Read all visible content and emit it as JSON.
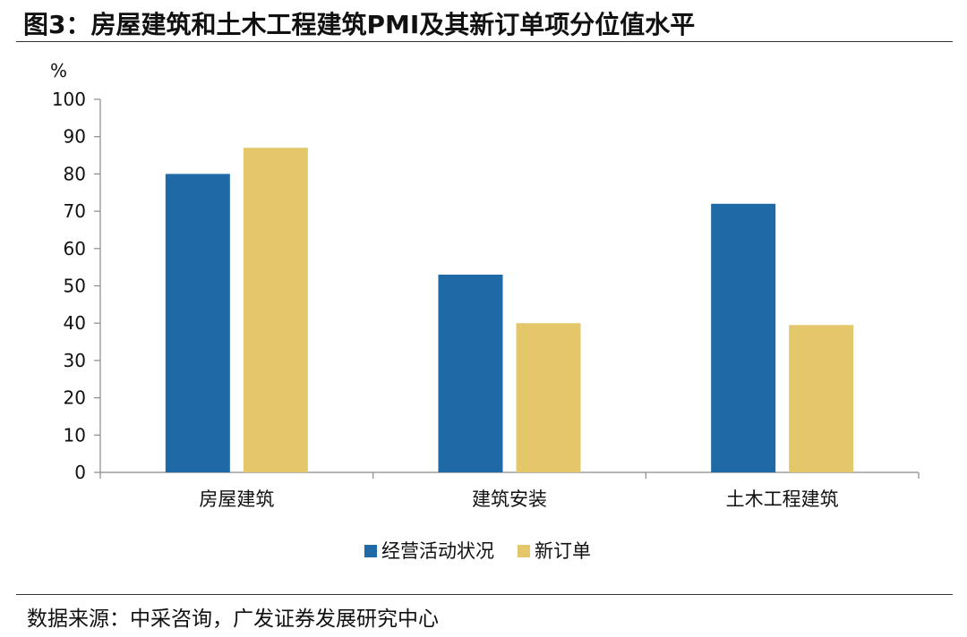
{
  "title": "图3：房屋建筑和土木工程建筑PMI及其新订单项分位值水平",
  "source": "数据来源：中采咨询，广发证券发展研究中心",
  "chart_data": {
    "type": "bar",
    "categories": [
      "房屋建筑",
      "建筑安装",
      "土木工程建筑"
    ],
    "series": [
      {
        "name": "经营活动状况",
        "values": [
          80,
          53,
          72
        ],
        "color": "#1F69A6"
      },
      {
        "name": "新订单",
        "values": [
          87,
          40,
          39.5
        ],
        "color": "#E5C76B"
      }
    ],
    "yunit": "%",
    "ylim": [
      0,
      100
    ],
    "yticks": [
      0,
      10,
      20,
      30,
      40,
      50,
      60,
      70,
      80,
      90,
      100
    ],
    "grid": false,
    "legend_position": "bottom"
  }
}
